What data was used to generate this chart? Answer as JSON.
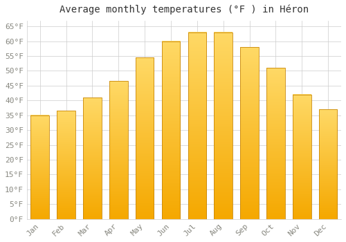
{
  "title": "Average monthly temperatures (°F ) in Héron",
  "months": [
    "Jan",
    "Feb",
    "Mar",
    "Apr",
    "May",
    "Jun",
    "Jul",
    "Aug",
    "Sep",
    "Oct",
    "Nov",
    "Dec"
  ],
  "values": [
    35.0,
    36.5,
    41.0,
    46.5,
    54.5,
    60.0,
    63.0,
    63.0,
    58.0,
    51.0,
    42.0,
    37.0
  ],
  "bar_color_bottom": "#F5A800",
  "bar_color_top": "#FFD966",
  "bar_edge_color": "#C8870A",
  "ylim": [
    0,
    67
  ],
  "ytick_step": 5,
  "background_color": "#FFFFFF",
  "grid_color": "#CCCCCC",
  "title_fontsize": 10,
  "tick_fontsize": 8,
  "bar_width": 0.7
}
